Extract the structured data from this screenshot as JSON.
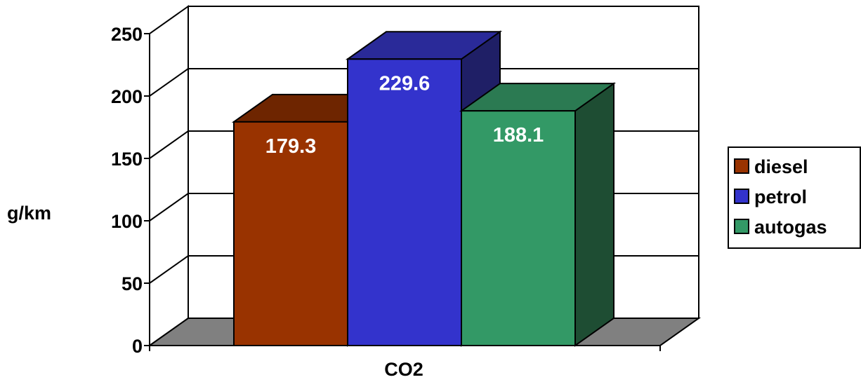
{
  "chart_data": {
    "type": "bar",
    "style": "3d-clustered-column",
    "categories": [
      "CO2"
    ],
    "series": [
      {
        "name": "diesel",
        "values": [
          179.3
        ],
        "color": "#993300",
        "top_color": "#6e2500",
        "side_color": "#6e2500"
      },
      {
        "name": "petrol",
        "values": [
          229.6
        ],
        "color": "#3333cc",
        "top_color": "#2a2a99",
        "side_color": "#1f1f66"
      },
      {
        "name": "autogas",
        "values": [
          188.1
        ],
        "color": "#339966",
        "top_color": "#2b7a52",
        "side_color": "#1e4d33"
      }
    ],
    "ylabel": "g/km",
    "ylim": [
      0,
      250
    ],
    "yticks": [
      0,
      50,
      100,
      150,
      200,
      250
    ],
    "grid": true,
    "data_labels": [
      "179.3",
      "229.6",
      "188.1"
    ],
    "legend_position": "right",
    "floor_color": "#808080"
  }
}
